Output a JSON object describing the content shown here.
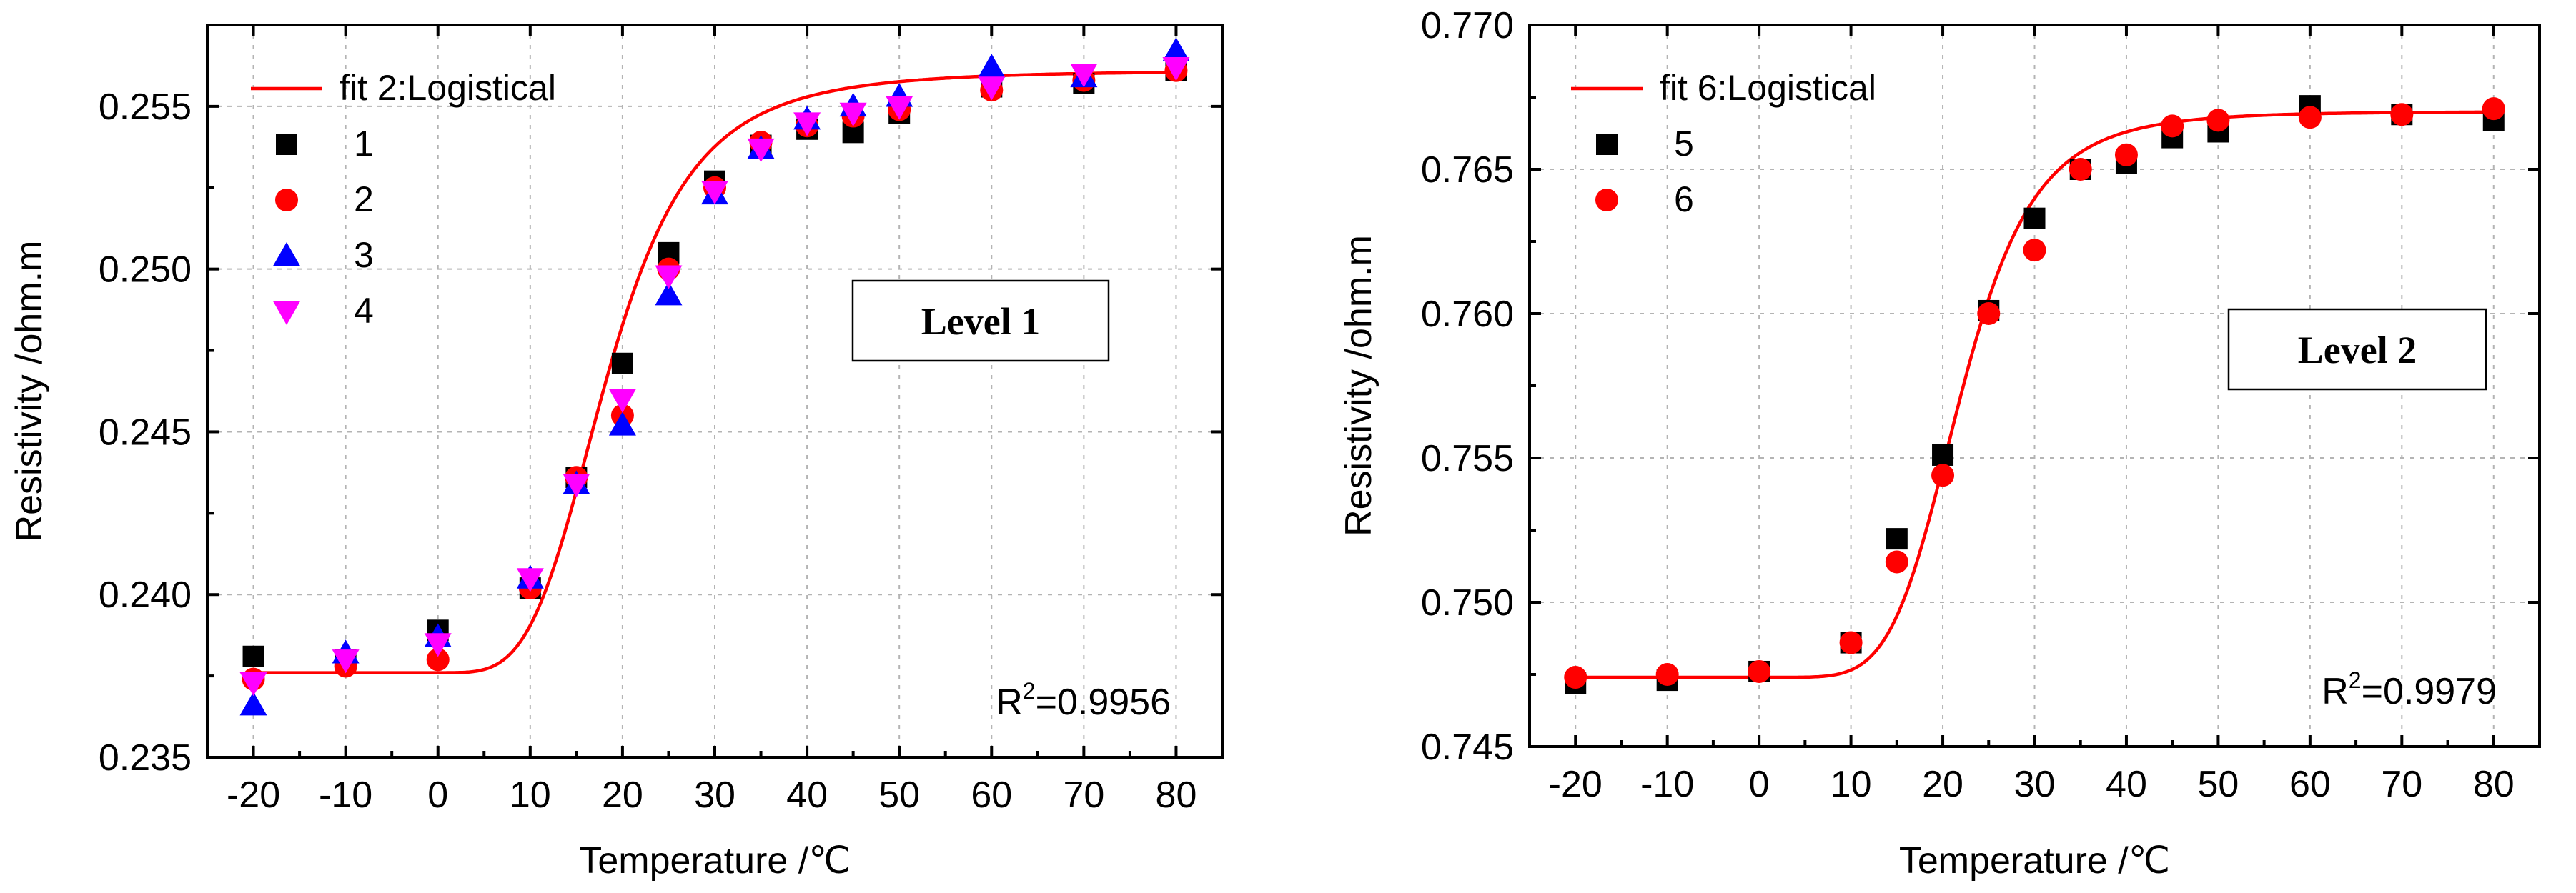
{
  "chart_data": [
    {
      "type": "scatter",
      "panel": "left",
      "xlabel": "Temperature /℃",
      "ylabel": "Resistivity /ohm.m",
      "xlim": [
        -25,
        85
      ],
      "ylim": [
        0.235,
        0.2575
      ],
      "xticks": [
        -20,
        -10,
        0,
        10,
        20,
        30,
        40,
        50,
        60,
        70,
        80
      ],
      "yticks": [
        0.235,
        0.24,
        0.245,
        0.25,
        0.255
      ],
      "ytick_labels": [
        "0.235",
        "0.240",
        "0.245",
        "0.250",
        "0.255"
      ],
      "grid": true,
      "annotation_box": "Level 1",
      "r2_label": "R",
      "r2_value": "=0.9956",
      "fit": {
        "name": "fit 2:Logistical",
        "color": "#ff0000",
        "model": "logistic",
        "A1": 0.2376,
        "A2": 0.2561,
        "x0": 18.5,
        "p": 4.0
      },
      "series": [
        {
          "name": "1",
          "marker": "square",
          "color": "#000000",
          "x": [
            -20,
            -10,
            0,
            10,
            15,
            20,
            25,
            30,
            35,
            40,
            45,
            50,
            60,
            70,
            80
          ],
          "y": [
            0.2381,
            0.238,
            0.2389,
            0.2402,
            0.2436,
            0.2471,
            0.2505,
            0.2527,
            0.2538,
            0.2543,
            0.2542,
            0.2548,
            0.2556,
            0.2557,
            0.2561
          ]
        },
        {
          "name": "2",
          "marker": "circle",
          "color": "#ff0000",
          "x": [
            -20,
            -10,
            0,
            10,
            15,
            20,
            25,
            30,
            35,
            40,
            45,
            50,
            60,
            70,
            80
          ],
          "y": [
            0.2374,
            0.2378,
            0.238,
            0.2402,
            0.2436,
            0.2455,
            0.25,
            0.2525,
            0.2539,
            0.2544,
            0.2547,
            0.2549,
            0.2555,
            0.2558,
            0.2561
          ]
        },
        {
          "name": "3",
          "marker": "triangle-up",
          "color": "#0000ff",
          "x": [
            -20,
            -10,
            0,
            10,
            15,
            20,
            25,
            30,
            35,
            40,
            45,
            50,
            60,
            70,
            80
          ],
          "y": [
            0.2366,
            0.2382,
            0.2387,
            0.2405,
            0.2434,
            0.2452,
            0.2492,
            0.2523,
            0.2537,
            0.2546,
            0.255,
            0.2553,
            0.2562,
            0.2559,
            0.2567
          ]
        },
        {
          "name": "4",
          "marker": "triangle-down",
          "color": "#ff00ff",
          "x": [
            -20,
            -10,
            0,
            10,
            15,
            20,
            25,
            30,
            35,
            40,
            45,
            50,
            60,
            70,
            80
          ],
          "y": [
            0.2373,
            0.238,
            0.2385,
            0.2405,
            0.2434,
            0.246,
            0.2498,
            0.2524,
            0.2537,
            0.2545,
            0.2548,
            0.255,
            0.2556,
            0.256,
            0.2562
          ]
        }
      ]
    },
    {
      "type": "scatter",
      "panel": "right",
      "xlabel": "Temperature /℃",
      "ylabel": "Resistivity /ohm.m",
      "xlim": [
        -25,
        85
      ],
      "ylim": [
        0.745,
        0.77
      ],
      "xticks": [
        -20,
        -10,
        0,
        10,
        20,
        30,
        40,
        50,
        60,
        70,
        80
      ],
      "yticks": [
        0.745,
        0.75,
        0.755,
        0.76,
        0.765,
        0.77
      ],
      "ytick_labels": [
        "0.745",
        "0.750",
        "0.755",
        "0.760",
        "0.765",
        "0.770"
      ],
      "grid": true,
      "annotation_box": "Level 2",
      "r2_label": "R",
      "r2_value": "=0.9979",
      "fit": {
        "name": "fit 6:Logistical",
        "color": "#ff0000",
        "model": "logistic",
        "A1": 0.7474,
        "A2": 0.767,
        "x0": 22.0,
        "p": 5.5
      },
      "series": [
        {
          "name": "5",
          "marker": "square",
          "color": "#000000",
          "x": [
            -20,
            -10,
            0,
            10,
            15,
            20,
            25,
            30,
            35,
            40,
            45,
            50,
            60,
            70,
            80
          ],
          "y": [
            0.7472,
            0.7473,
            0.7476,
            0.7486,
            0.7522,
            0.7551,
            0.7601,
            0.7633,
            0.765,
            0.7652,
            0.7661,
            0.7663,
            0.7672,
            0.7669,
            0.7667
          ]
        },
        {
          "name": "6",
          "marker": "circle",
          "color": "#ff0000",
          "x": [
            -20,
            -10,
            0,
            10,
            15,
            20,
            25,
            30,
            35,
            40,
            45,
            50,
            60,
            70,
            80
          ],
          "y": [
            0.7474,
            0.7475,
            0.7476,
            0.7486,
            0.7514,
            0.7544,
            0.76,
            0.7622,
            0.765,
            0.7655,
            0.7665,
            0.7667,
            0.7668,
            0.7669,
            0.7671
          ]
        }
      ]
    }
  ]
}
